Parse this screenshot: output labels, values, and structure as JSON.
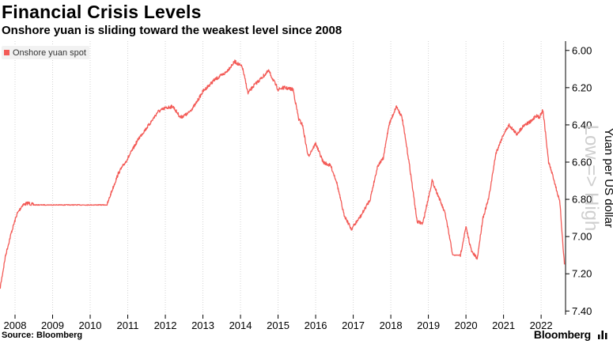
{
  "title": "Financial Crisis Levels",
  "subtitle": "Onshore yuan is sliding toward the weakest level since 2008",
  "source": "Source: Bloomberg",
  "brand": "Bloomberg",
  "colors": {
    "series": "#f35b57",
    "grid": "#d4d4d4",
    "axis": "#000000",
    "watermark": "#cfcfcf"
  },
  "chart_data": {
    "type": "line",
    "xlabel": "",
    "ylabel": "Yuan per US dollar",
    "y_annotation": "Low => High",
    "y_inverted": true,
    "ylim": [
      5.95,
      7.42
    ],
    "yticks": [
      6.0,
      6.2,
      6.4,
      6.6,
      6.8,
      7.0,
      7.2,
      7.4
    ],
    "ytick_labels": [
      "6.00",
      "6.20",
      "6.40",
      "6.60",
      "6.80",
      "7.00",
      "7.20",
      "7.40"
    ],
    "xlim": [
      2007.6,
      2022.65
    ],
    "xticks": [
      2008,
      2009,
      2010,
      2011,
      2012,
      2013,
      2014,
      2015,
      2016,
      2017,
      2018,
      2019,
      2020,
      2021,
      2022
    ],
    "xtick_labels": [
      "2008",
      "2009",
      "2010",
      "2011",
      "2012",
      "2013",
      "2014",
      "2015",
      "2016",
      "2017",
      "2018",
      "2019",
      "2020",
      "2021",
      "2022"
    ],
    "grid": "vertical dotted",
    "legend_position": "top-left",
    "series": [
      {
        "name": "Onshore yuan spot",
        "x": [
          2007.6,
          2007.75,
          2007.9,
          2008.05,
          2008.2,
          2008.35,
          2008.5,
          2008.7,
          2009.0,
          2009.5,
          2010.0,
          2010.45,
          2010.55,
          2010.75,
          2011.0,
          2011.3,
          2011.6,
          2011.8,
          2012.0,
          2012.2,
          2012.4,
          2012.6,
          2012.8,
          2013.0,
          2013.3,
          2013.6,
          2013.85,
          2014.05,
          2014.2,
          2014.35,
          2014.55,
          2014.75,
          2015.0,
          2015.15,
          2015.4,
          2015.55,
          2015.65,
          2015.8,
          2016.0,
          2016.2,
          2016.4,
          2016.55,
          2016.75,
          2016.95,
          2017.2,
          2017.45,
          2017.65,
          2017.8,
          2017.95,
          2018.15,
          2018.3,
          2018.5,
          2018.7,
          2018.85,
          2019.1,
          2019.3,
          2019.45,
          2019.65,
          2019.85,
          2020.0,
          2020.15,
          2020.3,
          2020.45,
          2020.6,
          2020.8,
          2021.0,
          2021.15,
          2021.35,
          2021.55,
          2021.75,
          2021.85,
          2021.95,
          2022.05,
          2022.2,
          2022.35,
          2022.5,
          2022.62
        ],
        "values": [
          7.28,
          7.1,
          6.98,
          6.88,
          6.83,
          6.82,
          6.83,
          6.83,
          6.83,
          6.83,
          6.83,
          6.83,
          6.77,
          6.66,
          6.58,
          6.47,
          6.39,
          6.33,
          6.31,
          6.3,
          6.36,
          6.34,
          6.29,
          6.22,
          6.16,
          6.12,
          6.06,
          6.09,
          6.23,
          6.19,
          6.15,
          6.11,
          6.21,
          6.2,
          6.21,
          6.37,
          6.4,
          6.57,
          6.5,
          6.6,
          6.62,
          6.7,
          6.88,
          6.96,
          6.89,
          6.8,
          6.62,
          6.58,
          6.4,
          6.3,
          6.36,
          6.62,
          6.92,
          6.93,
          6.7,
          6.8,
          6.88,
          7.1,
          7.1,
          6.95,
          7.08,
          7.12,
          6.9,
          6.8,
          6.55,
          6.45,
          6.4,
          6.45,
          6.4,
          6.38,
          6.35,
          6.36,
          6.32,
          6.6,
          6.7,
          6.82,
          7.15
        ]
      }
    ]
  }
}
